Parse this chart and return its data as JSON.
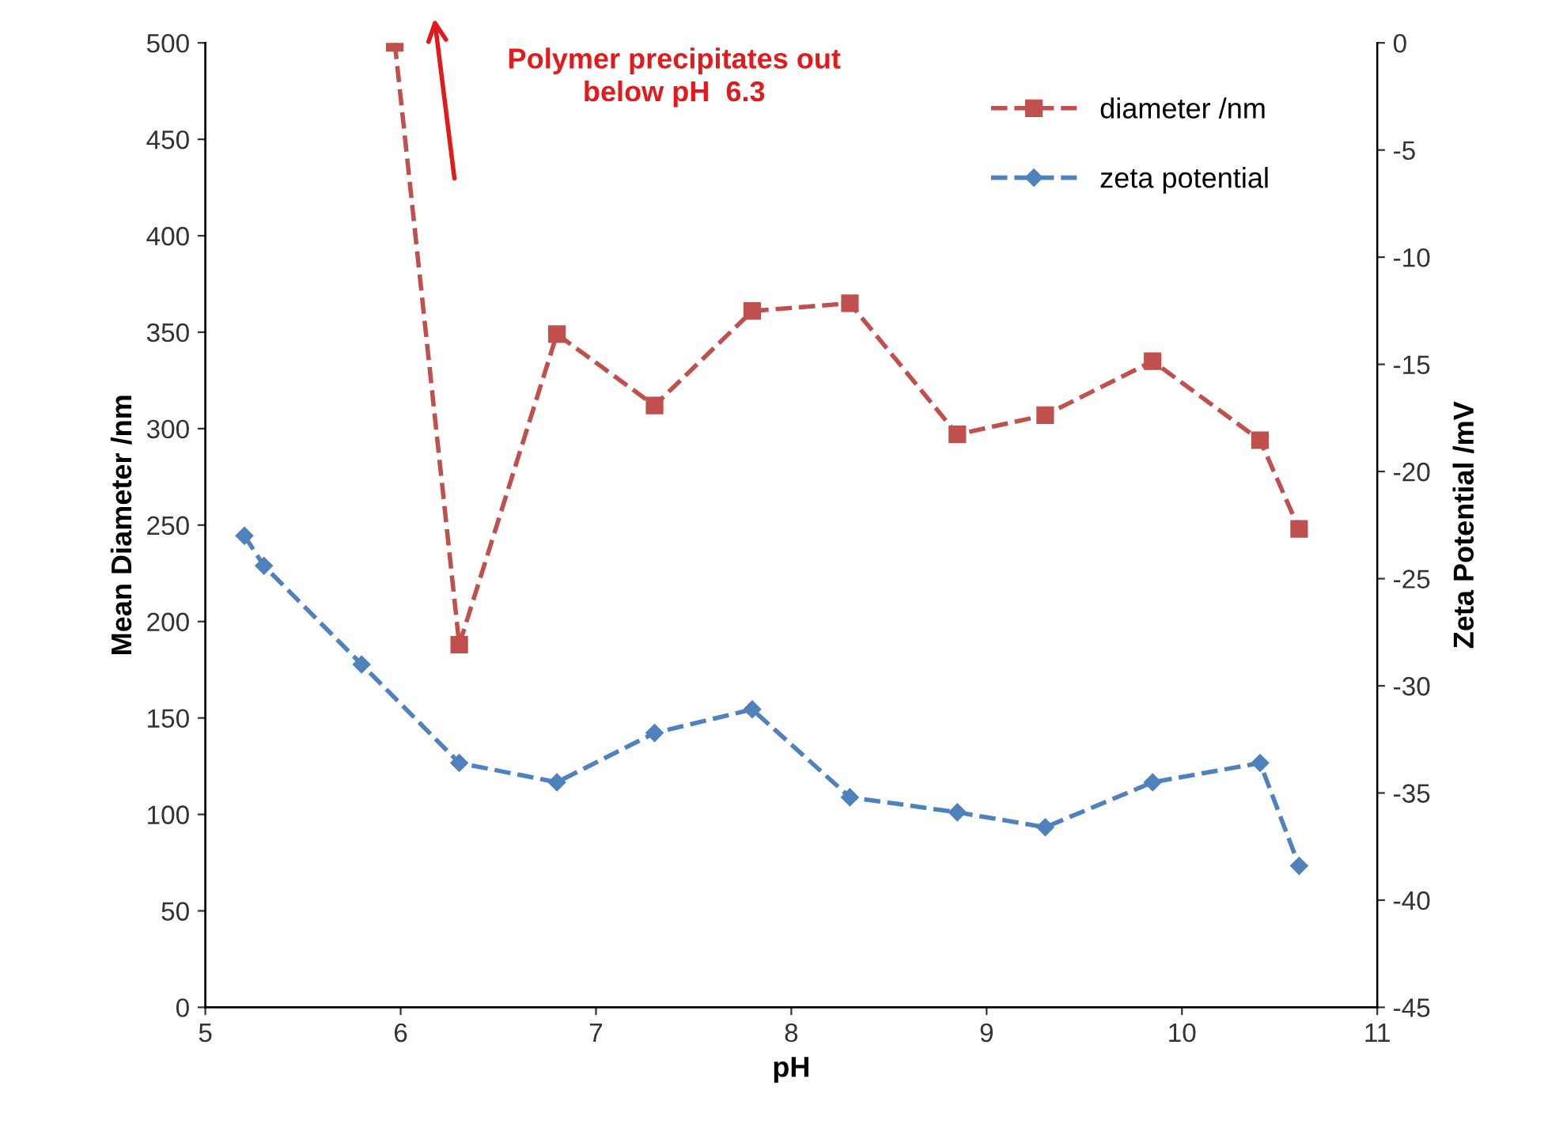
{
  "chart_data": {
    "type": "line",
    "xlabel": "pH",
    "ylabel": "Mean Diameter /nm",
    "y2label": "Zeta Potential /mV",
    "xlim": [
      5,
      11
    ],
    "xticks": [
      5,
      6,
      7,
      8,
      9,
      10,
      11
    ],
    "ylim": [
      0,
      500
    ],
    "yticks": [
      0,
      50,
      100,
      150,
      200,
      250,
      300,
      350,
      400,
      450,
      500
    ],
    "y2lim": [
      -45,
      0
    ],
    "y2ticks": [
      -45,
      -40,
      -35,
      -30,
      -25,
      -20,
      -15,
      -10,
      -5,
      0
    ],
    "grid": false,
    "legend": "top right",
    "line_style": "dashed",
    "series": [
      {
        "name": "diameter /nm",
        "color": "#c0504d",
        "marker": "square",
        "x": [
          5.97,
          6.3,
          6.8,
          7.3,
          7.8,
          8.3,
          8.85,
          9.3,
          9.85,
          10.4,
          10.6
        ],
        "values": [
          500,
          188,
          349,
          312,
          361,
          365,
          297,
          307,
          335,
          294,
          248
        ]
      },
      {
        "name": "zeta potential",
        "color": "#4f81bd",
        "marker": "diamond",
        "axis": "y2",
        "x": [
          5.2,
          5.3,
          5.8,
          6.3,
          6.8,
          7.3,
          7.8,
          8.3,
          8.85,
          9.3,
          9.85,
          10.4,
          10.6
        ],
        "values": [
          -23.0,
          -24.4,
          -29.0,
          -33.6,
          -34.5,
          -32.2,
          -31.1,
          -35.2,
          -35.9,
          -36.6,
          -34.5,
          -33.6,
          -38.4
        ]
      }
    ],
    "annotations": [
      "Polymer precipitates out\nbelow pH  6.3"
    ]
  }
}
